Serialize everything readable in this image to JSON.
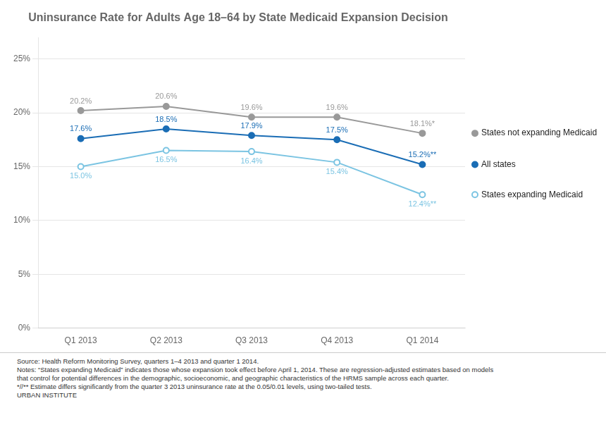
{
  "chart_data": {
    "type": "line",
    "title": "Uninsurance Rate for Adults Age 18–64 by State Medicaid Expansion Decision",
    "categories": [
      "Q1 2013",
      "Q2 2013",
      "Q3 2013",
      "Q4 2013",
      "Q1 2014"
    ],
    "series": [
      {
        "name": "States not expanding Medicaid",
        "color": "#999999",
        "marker": "circle",
        "values": [
          20.2,
          20.6,
          19.6,
          19.6,
          18.1
        ],
        "value_labels": [
          "20.2%",
          "20.6%",
          "19.6%",
          "19.6%",
          "18.1%*"
        ]
      },
      {
        "name": "All states",
        "color": "#1a6db5",
        "marker": "circle",
        "values": [
          17.6,
          18.5,
          17.9,
          17.5,
          15.2
        ],
        "value_labels": [
          "17.6%",
          "18.5%",
          "17.9%",
          "17.5%",
          "15.2%**"
        ]
      },
      {
        "name": "States expanding Medicaid",
        "color": "#7bc4e2",
        "marker": "open_circle",
        "values": [
          15.0,
          16.5,
          16.4,
          15.4,
          12.4
        ],
        "value_labels": [
          "15.0%",
          "16.5%",
          "16.4%",
          "15.4%",
          "12.4%**"
        ]
      }
    ],
    "ylim": [
      0,
      27
    ],
    "yticks": [
      {
        "value": 0,
        "label": "0%"
      },
      {
        "value": 5,
        "label": "5%"
      },
      {
        "value": 10,
        "label": "10%"
      },
      {
        "value": 15,
        "label": "15%"
      },
      {
        "value": 20,
        "label": "20%"
      },
      {
        "value": 25,
        "label": "25%"
      }
    ],
    "grid": true,
    "legend": "right",
    "data_labels": true,
    "annotations": [
      "Source:  Health Reform Monitoring Survey, quarters 1–4 2013 and quarter 1 2014.",
      "Notes: “States expanding Medicaid” indicates those whose expansion took effect before April 1, 2014. These are regression-adjusted estimates based on models",
      "that control for potential differences in the demographic, socioeconomic, and geographic characteristics of the  HRMS sample across each quarter.",
      "*//** Estimate differs significantly from the quarter 3 2013 uninsurance rate at the 0.05/0.01 levels, using two-tailed tests.",
      "URBAN INSTITUTE"
    ]
  }
}
